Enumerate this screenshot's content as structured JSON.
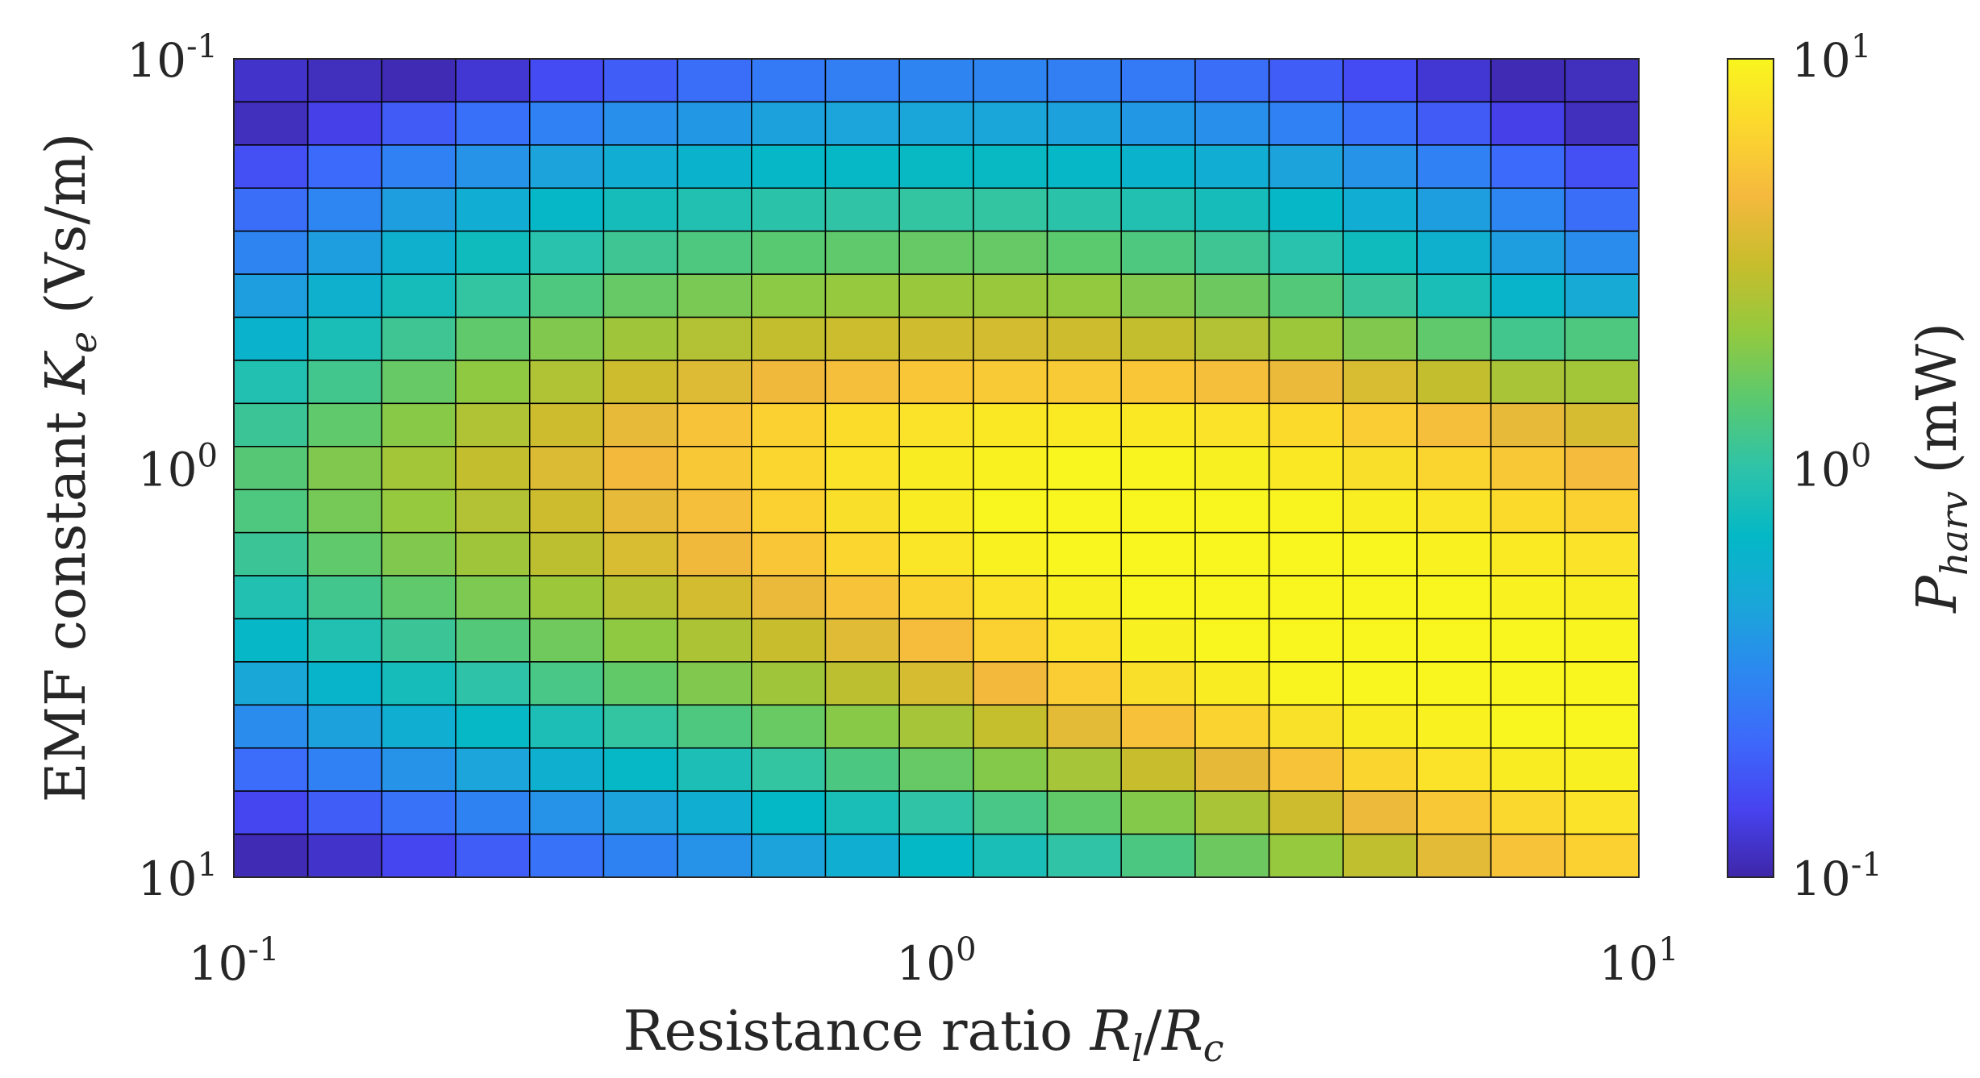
{
  "chart_data": {
    "type": "heatmap",
    "xlabel": {
      "text": "Resistance ratio ",
      "math_main_1": "R",
      "math_sub_1": "l",
      "math_sep": "/",
      "math_main_2": "R",
      "math_sub_2": "c"
    },
    "ylabel": {
      "text": "EMF constant ",
      "math_main": "K",
      "math_sub": "e",
      "units": " (Vs/m)"
    },
    "colorbar_label": {
      "math_main": "P",
      "math_sub": "harv",
      "units": " (mW)"
    },
    "x_scale": "log",
    "y_scale": "log",
    "x_range": [
      0.1,
      10
    ],
    "y_top": 0.1,
    "y_bottom": 10,
    "color_range": [
      0.1,
      10
    ],
    "x_ticks": [
      {
        "base": "10",
        "exp": "-1"
      },
      {
        "base": "10",
        "exp": "0"
      },
      {
        "base": "10",
        "exp": "1"
      }
    ],
    "y_ticks": [
      {
        "base": "10",
        "exp": "-1"
      },
      {
        "base": "10",
        "exp": "0"
      },
      {
        "base": "10",
        "exp": "1"
      }
    ],
    "colorbar_ticks": [
      {
        "base": "10",
        "exp": "1"
      },
      {
        "base": "10",
        "exp": "0"
      },
      {
        "base": "10",
        "exp": "-1"
      }
    ],
    "n_cols": 19,
    "n_rows": 19,
    "colormap": [
      "#3e26a8",
      "#4743f0",
      "#3d69fb",
      "#2c88f0",
      "#1aa6d9",
      "#04b8c6",
      "#2ec3a8",
      "#5ac96f",
      "#94c93e",
      "#c8bd2c",
      "#f5b93e",
      "#fbd72e",
      "#f9f51e"
    ],
    "values_log10": [
      [
        -0.92,
        -0.95,
        -0.97,
        -0.9,
        -0.8,
        -0.72,
        -0.64,
        -0.58,
        -0.55,
        -0.52,
        -0.52,
        -0.55,
        -0.58,
        -0.64,
        -0.72,
        -0.8,
        -0.9,
        -0.97,
        -0.95
      ],
      [
        -0.95,
        -0.85,
        -0.73,
        -0.63,
        -0.54,
        -0.46,
        -0.41,
        -0.36,
        -0.34,
        -0.33,
        -0.33,
        -0.36,
        -0.41,
        -0.46,
        -0.54,
        -0.63,
        -0.73,
        -0.85,
        -0.95
      ],
      [
        -0.78,
        -0.66,
        -0.54,
        -0.44,
        -0.35,
        -0.27,
        -0.22,
        -0.18,
        -0.16,
        -0.15,
        -0.15,
        -0.18,
        -0.22,
        -0.27,
        -0.35,
        -0.44,
        -0.54,
        -0.66,
        -0.78
      ],
      [
        -0.64,
        -0.51,
        -0.38,
        -0.27,
        -0.18,
        -0.1,
        -0.05,
        -0.01,
        0.01,
        0.02,
        0.02,
        -0.01,
        -0.05,
        -0.1,
        -0.18,
        -0.27,
        -0.38,
        -0.51,
        -0.64
      ],
      [
        -0.52,
        -0.38,
        -0.24,
        -0.12,
        -0.02,
        0.06,
        0.12,
        0.16,
        0.18,
        0.2,
        0.2,
        0.17,
        0.12,
        0.06,
        -0.02,
        -0.12,
        -0.24,
        -0.38,
        -0.48
      ],
      [
        -0.38,
        -0.24,
        -0.1,
        0.02,
        0.12,
        0.2,
        0.26,
        0.31,
        0.34,
        0.35,
        0.35,
        0.33,
        0.28,
        0.22,
        0.14,
        0.04,
        -0.08,
        -0.2,
        -0.3
      ],
      [
        -0.22,
        -0.08,
        0.06,
        0.18,
        0.28,
        0.37,
        0.43,
        0.48,
        0.51,
        0.53,
        0.54,
        0.52,
        0.48,
        0.43,
        0.36,
        0.28,
        0.18,
        0.08,
        0.12
      ],
      [
        -0.05,
        0.08,
        0.2,
        0.32,
        0.42,
        0.52,
        0.58,
        0.65,
        0.7,
        0.74,
        0.76,
        0.76,
        0.74,
        0.7,
        0.63,
        0.56,
        0.48,
        0.4,
        0.38
      ],
      [
        0.05,
        0.18,
        0.3,
        0.42,
        0.52,
        0.62,
        0.72,
        0.8,
        0.86,
        0.9,
        0.93,
        0.94,
        0.93,
        0.9,
        0.85,
        0.78,
        0.7,
        0.62,
        0.55
      ],
      [
        0.15,
        0.28,
        0.38,
        0.48,
        0.57,
        0.66,
        0.75,
        0.83,
        0.9,
        0.95,
        0.98,
        1.0,
        0.99,
        0.97,
        0.93,
        0.88,
        0.82,
        0.75,
        0.68
      ],
      [
        0.12,
        0.25,
        0.34,
        0.43,
        0.52,
        0.62,
        0.7,
        0.8,
        0.88,
        0.95,
        1.0,
        1.02,
        1.03,
        1.02,
        0.99,
        0.96,
        0.91,
        0.85,
        0.8
      ],
      [
        0.05,
        0.18,
        0.28,
        0.37,
        0.46,
        0.56,
        0.65,
        0.74,
        0.83,
        0.91,
        0.98,
        1.02,
        1.04,
        1.04,
        1.03,
        1.01,
        0.98,
        0.94,
        0.9
      ],
      [
        -0.05,
        0.08,
        0.18,
        0.27,
        0.36,
        0.45,
        0.54,
        0.63,
        0.72,
        0.81,
        0.9,
        0.97,
        1.01,
        1.03,
        1.04,
        1.03,
        1.01,
        0.98,
        0.96
      ],
      [
        -0.18,
        -0.05,
        0.05,
        0.14,
        0.23,
        0.32,
        0.41,
        0.5,
        0.59,
        0.69,
        0.8,
        0.9,
        0.97,
        1.01,
        1.03,
        1.03,
        1.02,
        1.01,
        0.99
      ],
      [
        -0.32,
        -0.2,
        -0.1,
        0.0,
        0.1,
        0.19,
        0.28,
        0.37,
        0.46,
        0.55,
        0.66,
        0.78,
        0.88,
        0.95,
        0.99,
        1.01,
        1.02,
        1.02,
        1.01
      ],
      [
        -0.48,
        -0.36,
        -0.26,
        -0.16,
        -0.07,
        0.02,
        0.12,
        0.21,
        0.3,
        0.39,
        0.49,
        0.6,
        0.71,
        0.81,
        0.89,
        0.95,
        0.98,
        1.0,
        1.01
      ],
      [
        -0.65,
        -0.54,
        -0.44,
        -0.34,
        -0.25,
        -0.16,
        -0.07,
        0.02,
        0.11,
        0.2,
        0.29,
        0.39,
        0.5,
        0.61,
        0.72,
        0.82,
        0.9,
        0.95,
        0.97
      ],
      [
        -0.82,
        -0.72,
        -0.62,
        -0.53,
        -0.44,
        -0.35,
        -0.26,
        -0.17,
        -0.08,
        0.01,
        0.1,
        0.19,
        0.29,
        0.4,
        0.52,
        0.64,
        0.75,
        0.84,
        0.9
      ],
      [
        -0.97,
        -0.92,
        -0.82,
        -0.72,
        -0.62,
        -0.53,
        -0.44,
        -0.35,
        -0.26,
        -0.17,
        -0.08,
        0.01,
        0.11,
        0.22,
        0.34,
        0.47,
        0.6,
        0.72,
        0.8
      ]
    ]
  }
}
